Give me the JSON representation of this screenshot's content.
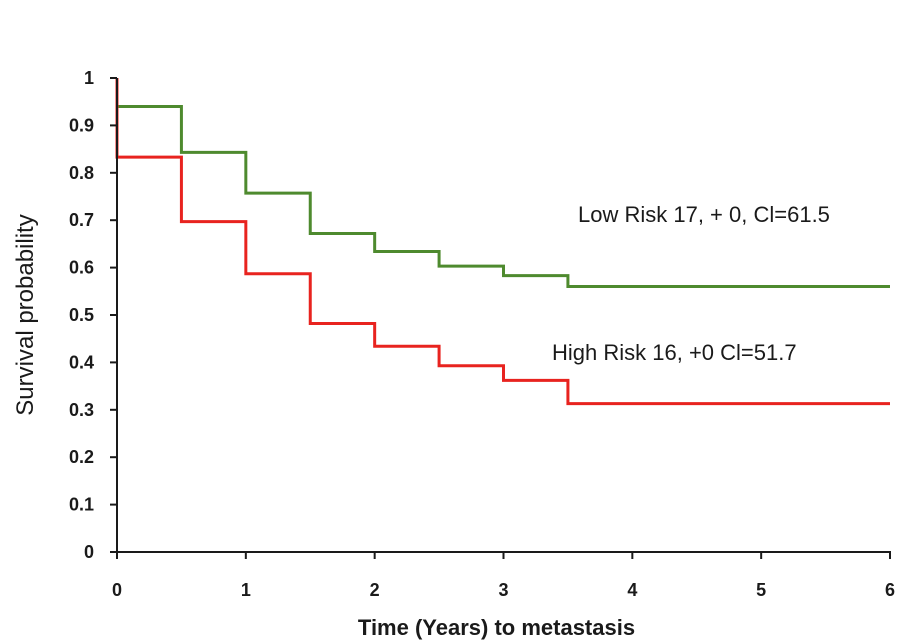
{
  "chart_data": {
    "type": "line",
    "step": true,
    "title": "",
    "xlabel": "Time (Years)  to metastasis",
    "ylabel": "Survival probability",
    "xlim": [
      0,
      6
    ],
    "ylim": [
      0,
      1
    ],
    "x_ticks": [
      "0",
      "1",
      "2",
      "3",
      "4",
      "5",
      "6"
    ],
    "y_ticks": [
      "0",
      "0.1",
      "0.2",
      "0.3",
      "0.4",
      "0.5",
      "0.6",
      "0.7",
      "0.8",
      "0.9",
      "1"
    ],
    "grid": false,
    "legend": "none",
    "series": [
      {
        "key": "low-risk",
        "color": "#4e8a2e",
        "x": [
          0,
          0,
          0.5,
          1,
          1.5,
          2,
          2.5,
          3,
          3.5,
          6
        ],
        "y": [
          1,
          0.94,
          0.843,
          0.757,
          0.672,
          0.634,
          0.603,
          0.583,
          0.56,
          0.56
        ]
      },
      {
        "key": "high-risk",
        "color": "#e8231f",
        "x": [
          0,
          0,
          0.5,
          1,
          1.5,
          2,
          2.5,
          3,
          3.5,
          6
        ],
        "y": [
          1,
          0.833,
          0.697,
          0.587,
          0.482,
          0.434,
          0.393,
          0.362,
          0.313,
          0.313
        ]
      }
    ],
    "annotations": [
      {
        "key": "low-risk-label",
        "text": "Low Risk 17, + 0, Cl=61.5"
      },
      {
        "key": "high-risk-label",
        "text": "High Risk 16, +0 Cl=51.7"
      }
    ]
  }
}
